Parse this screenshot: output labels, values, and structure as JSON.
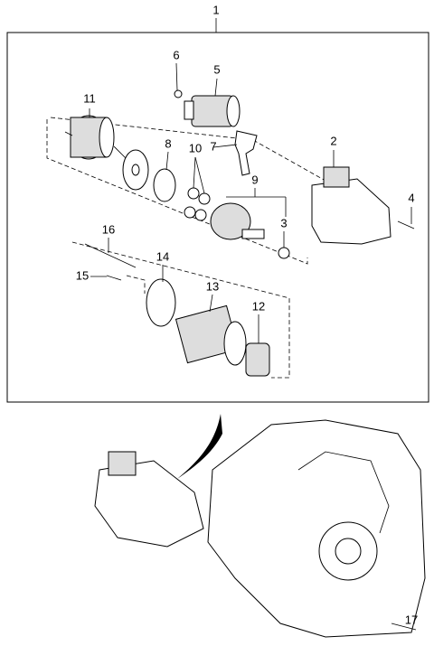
{
  "callouts": [
    "1",
    "2",
    "3",
    "4",
    "5",
    "6",
    "7",
    "8",
    "9",
    "10",
    "11",
    "12",
    "13",
    "14",
    "15",
    "16",
    "17"
  ]
}
